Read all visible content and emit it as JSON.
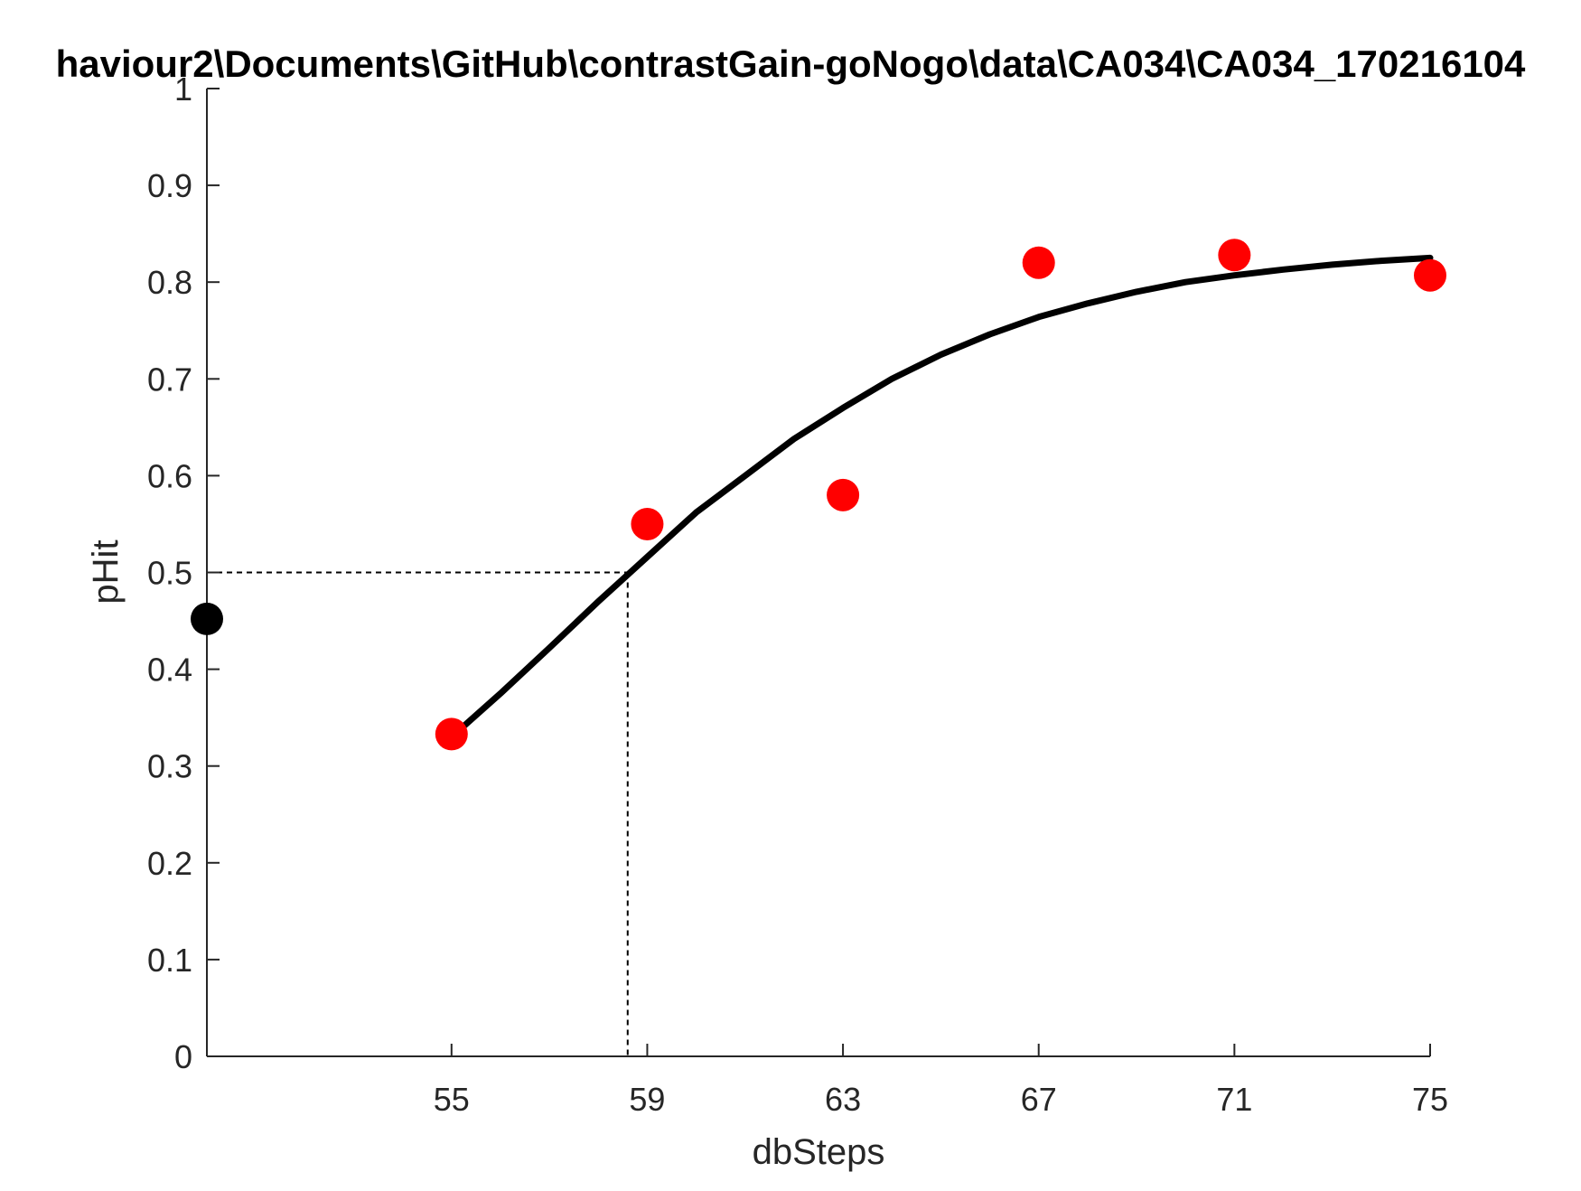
{
  "chart_data": {
    "type": "scatter",
    "title": "haviour2\\Documents\\GitHub\\contrastGain-goNogo\\data\\CA034\\CA034_170216104",
    "xlabel": "dbSteps",
    "ylabel": "pHit",
    "xlim": [
      50,
      75
    ],
    "ylim": [
      0,
      1
    ],
    "x_ticks": [
      "55",
      "59",
      "63",
      "67",
      "71",
      "75"
    ],
    "y_ticks": [
      "0",
      "0.1",
      "0.2",
      "0.3",
      "0.4",
      "0.5",
      "0.6",
      "0.7",
      "0.8",
      "0.9",
      "1"
    ],
    "grid": false,
    "series": [
      {
        "type": "scatter",
        "color": "#ff0000",
        "x": [
          55,
          59,
          63,
          67,
          71,
          75
        ],
        "y": [
          0.333,
          0.55,
          0.58,
          0.82,
          0.828,
          0.807
        ]
      },
      {
        "type": "scatter",
        "color": "#000000",
        "x": [
          50
        ],
        "y": [
          0.452
        ]
      },
      {
        "type": "line",
        "color": "#000000",
        "x": [
          55,
          56,
          57,
          58,
          59,
          60,
          61,
          62,
          63,
          64,
          65,
          66,
          67,
          68,
          69,
          70,
          71,
          72,
          73,
          74,
          75
        ],
        "y": [
          0.33,
          0.375,
          0.422,
          0.47,
          0.516,
          0.562,
          0.6,
          0.638,
          0.67,
          0.7,
          0.725,
          0.746,
          0.764,
          0.778,
          0.79,
          0.8,
          0.807,
          0.813,
          0.818,
          0.822,
          0.825
        ]
      }
    ],
    "threshold": {
      "x": 58.6,
      "y": 0.5
    }
  }
}
